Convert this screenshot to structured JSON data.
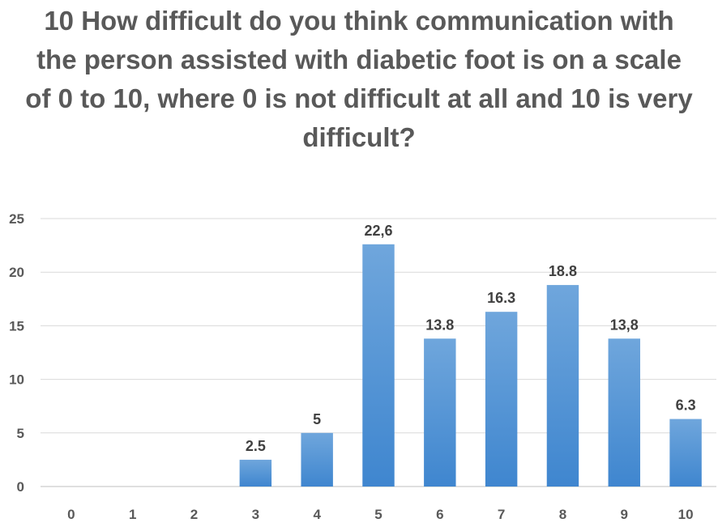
{
  "chart_data": {
    "type": "bar",
    "title": "10 How difficult do you think communication with the person assisted with diabetic foot is on a scale of 0 to 10, where 0 is not difficult at all and 10 is very difficult?",
    "categories": [
      "0",
      "1",
      "2",
      "3",
      "4",
      "5",
      "6",
      "7",
      "8",
      "9",
      "10"
    ],
    "values": [
      0,
      0,
      0,
      2.5,
      5,
      22.6,
      13.8,
      16.3,
      18.8,
      13.8,
      6.3
    ],
    "data_labels": [
      "",
      "",
      "",
      "2.5",
      "5",
      "22,6",
      "13.8",
      "16.3",
      "18.8",
      "13,8",
      "6.3"
    ],
    "ylim": [
      0,
      25
    ],
    "yticks": [
      "0",
      "5",
      "10",
      "15",
      "20",
      "25"
    ],
    "xlabel": "",
    "ylabel": "",
    "grid": true,
    "legend": "none",
    "bar_color": "#5b9bd5"
  }
}
